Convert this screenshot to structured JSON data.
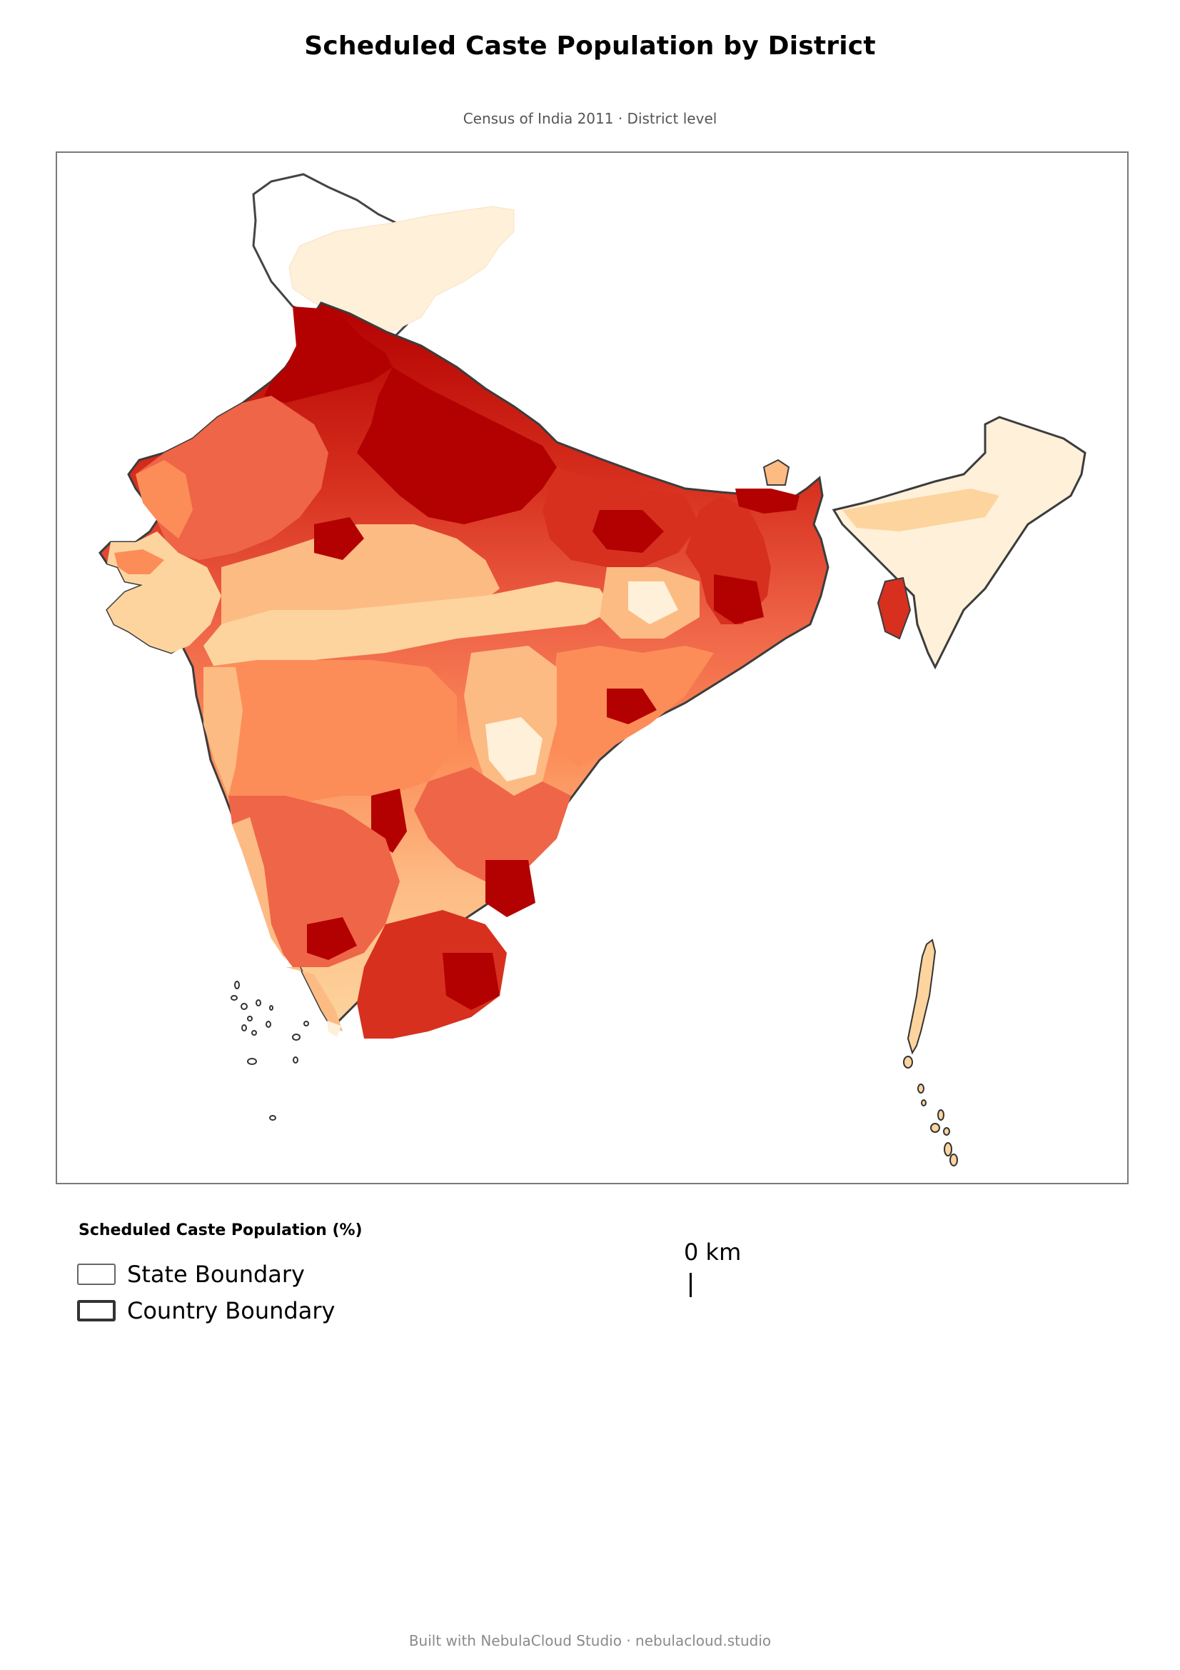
{
  "title": "Scheduled Caste Population by District",
  "subtitle": "Census of India 2011 · District level",
  "legend": {
    "title": "Scheduled Caste Population (%)",
    "items": [
      {
        "label": "State Boundary"
      },
      {
        "label": "Country Boundary"
      }
    ]
  },
  "scale_bar": {
    "label": "0 km"
  },
  "footer": "Built with NebulaCloud Studio · nebulacloud.studio",
  "colors": {
    "very_low": "#fef0d9",
    "low": "#fdd49e",
    "medium_low": "#fdbb84",
    "medium": "#fc8d59",
    "high": "#ef6548",
    "very_high": "#d7301f",
    "highest": "#b30000",
    "boundary": "#3c3c3c"
  }
}
